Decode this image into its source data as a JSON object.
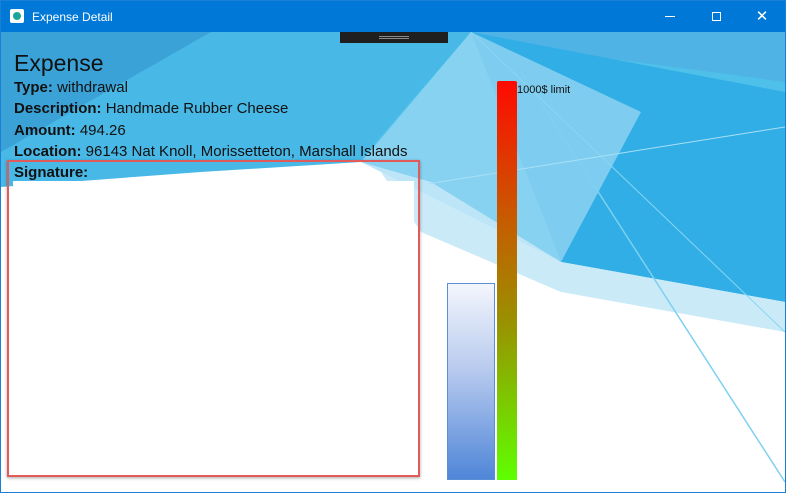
{
  "window": {
    "title": "Expense Detail",
    "icon": "app-icon",
    "controls": {
      "minimize": "minimize-icon",
      "maximize": "maximize-icon",
      "close": "close-icon"
    }
  },
  "expense": {
    "heading": "Expense",
    "type_label": "Type:",
    "type_value": "withdrawal",
    "description_label": "Description:",
    "description_value": "Handmade Rubber Cheese",
    "amount_label": "Amount:",
    "amount_value": "494.26",
    "location_label": "Location:",
    "location_value": "96143 Nat Knoll, Morissetteton, Marshall Islands",
    "signature_label": "Signature:"
  },
  "limit_meter": {
    "label": "1000$ limit",
    "limit": 1000,
    "amount": 494.26,
    "fill_fraction": 0.494
  },
  "colors": {
    "titlebar": "#0078d7",
    "signature_highlight": "#e25b5b",
    "meter_top": "#ff0a00",
    "meter_bottom": "#5fff00"
  }
}
